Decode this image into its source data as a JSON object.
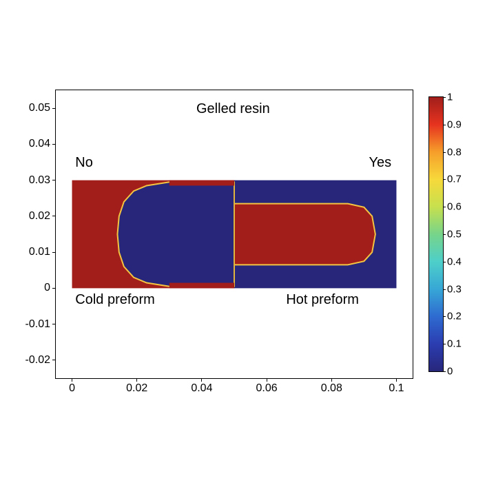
{
  "chart": {
    "type": "heatmap",
    "title": "Gelled resin",
    "title_fontsize": 20,
    "label_fontsize": 16,
    "annotation_fontsize": 20,
    "background_color": "#ffffff",
    "axis_color": "#000000",
    "xlim": [
      -0.005,
      0.105
    ],
    "ylim": [
      -0.025,
      0.055
    ],
    "xticks": [
      0,
      0.02,
      0.04,
      0.06,
      0.08,
      0.1
    ],
    "yticks": [
      -0.02,
      -0.01,
      0,
      0.01,
      0.02,
      0.03,
      0.04,
      0.05
    ],
    "data_region": {
      "x0": 0,
      "x1": 0.1,
      "y0": 0,
      "y1": 0.03
    },
    "colors": {
      "blue": "#27267a",
      "red": "#a11e1b",
      "edge": "#f4c441"
    },
    "annotations": {
      "no": "No",
      "yes": "Yes",
      "cold": "Cold preform",
      "hot": "Hot preform"
    },
    "colorbar": {
      "range": [
        0,
        1
      ],
      "ticks": [
        0,
        0.1,
        0.2,
        0.3,
        0.4,
        0.5,
        0.6,
        0.7,
        0.8,
        0.9,
        1
      ],
      "stops": [
        {
          "v": 0.0,
          "c": "#27267a"
        },
        {
          "v": 0.1,
          "c": "#2b3db1"
        },
        {
          "v": 0.2,
          "c": "#2e6bd0"
        },
        {
          "v": 0.3,
          "c": "#37a7d6"
        },
        {
          "v": 0.4,
          "c": "#4ecfc9"
        },
        {
          "v": 0.5,
          "c": "#77d48a"
        },
        {
          "v": 0.6,
          "c": "#c7e04e"
        },
        {
          "v": 0.7,
          "c": "#f7d93b"
        },
        {
          "v": 0.8,
          "c": "#f69e2a"
        },
        {
          "v": 0.9,
          "c": "#e6331f"
        },
        {
          "v": 1.0,
          "c": "#a11e1b"
        }
      ]
    }
  }
}
